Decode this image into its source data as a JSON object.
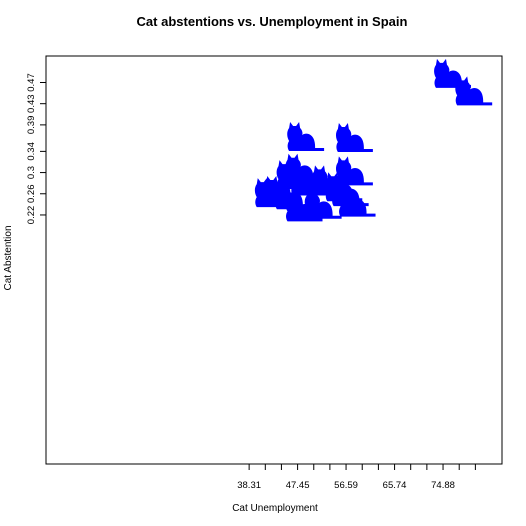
{
  "chart_data": {
    "type": "scatter",
    "title": "Cat abstentions vs. Unemployment in Spain",
    "xlabel": "Cat Unemployment",
    "ylabel": "Cat Abstention",
    "xlim": [
      0,
      86
    ],
    "ylim": [
      -0.25,
      0.52
    ],
    "grid": false,
    "legend": "none",
    "x_tick_labels": [
      "38.31",
      "",
      "",
      "47.45",
      "",
      "",
      "56.59",
      "",
      "",
      "65.74",
      "",
      "",
      "74.88",
      "",
      ""
    ],
    "x_tick_values": [
      38.31,
      41.36,
      44.4,
      47.45,
      50.5,
      53.54,
      56.59,
      59.64,
      62.69,
      65.74,
      68.78,
      71.83,
      74.88,
      77.93,
      80.98
    ],
    "y_tick_labels": [
      "0.22",
      "0.26",
      "0.3",
      "0.34",
      "0.39",
      "0.43",
      "0.47"
    ],
    "y_tick_values": [
      0.22,
      0.26,
      0.3,
      0.34,
      0.39,
      0.43,
      0.47
    ],
    "marker": "cat-silhouette",
    "marker_color": "#0000ff",
    "points": [
      {
        "x": 76.0,
        "y": 0.473
      },
      {
        "x": 80.0,
        "y": 0.44
      },
      {
        "x": 48.3,
        "y": 0.354
      },
      {
        "x": 57.5,
        "y": 0.352
      },
      {
        "x": 48.0,
        "y": 0.294
      },
      {
        "x": 46.3,
        "y": 0.282
      },
      {
        "x": 57.5,
        "y": 0.289
      },
      {
        "x": 53.0,
        "y": 0.272
      },
      {
        "x": 49.0,
        "y": 0.27
      },
      {
        "x": 44.0,
        "y": 0.252
      },
      {
        "x": 46.0,
        "y": 0.244
      },
      {
        "x": 55.5,
        "y": 0.259
      },
      {
        "x": 56.7,
        "y": 0.25
      },
      {
        "x": 48.0,
        "y": 0.221
      },
      {
        "x": 51.6,
        "y": 0.226
      },
      {
        "x": 58.0,
        "y": 0.23
      },
      {
        "x": 42.2,
        "y": 0.248
      }
    ]
  }
}
